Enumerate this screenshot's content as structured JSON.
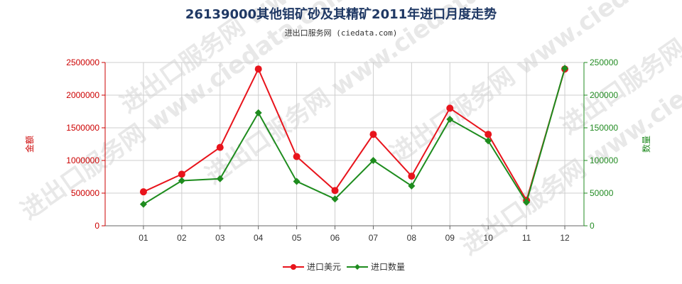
{
  "chart_data": {
    "type": "line",
    "title": "26139000其他钼矿砂及其精矿2011年进口月度走势",
    "subtitle": "进出口服务网 (ciedata.com)",
    "watermark": "进出口服务网 www.ciedata.com",
    "categories": [
      "01",
      "02",
      "03",
      "04",
      "05",
      "06",
      "07",
      "08",
      "09",
      "10",
      "11",
      "12"
    ],
    "y_left": {
      "label": "金额",
      "range": [
        0,
        2500000
      ],
      "ticks": [
        "0",
        "500000",
        "1000000",
        "1500000",
        "2000000",
        "2500000"
      ]
    },
    "y_right": {
      "label": "数量",
      "range": [
        0,
        250000
      ],
      "ticks": [
        "0",
        "50000",
        "100000",
        "150000",
        "200000",
        "250000"
      ]
    },
    "grid": true,
    "legend_position": "bottom",
    "series": [
      {
        "name": "进口美元",
        "axis": "left",
        "color": "#e8141c",
        "marker": "circle",
        "values": [
          520000,
          790000,
          1200000,
          2400000,
          1060000,
          540000,
          1400000,
          760000,
          1800000,
          1400000,
          390000,
          2400000
        ]
      },
      {
        "name": "进口数量",
        "axis": "right",
        "color": "#1e8c1e",
        "marker": "diamond",
        "values": [
          33000,
          69000,
          72000,
          173000,
          68000,
          41000,
          100000,
          61000,
          163000,
          130000,
          36000,
          241000
        ]
      }
    ]
  }
}
